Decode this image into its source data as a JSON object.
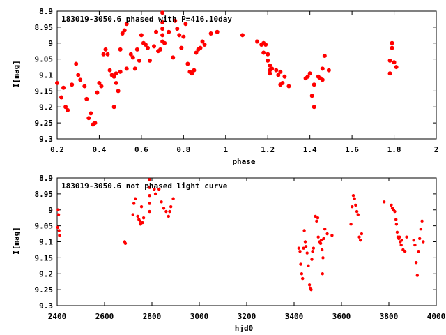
{
  "chart_data": [
    {
      "type": "scatter",
      "title": "183019-3050.6 phased with P=416.10day",
      "xlabel": "phase",
      "ylabel": "I[mag]",
      "xlim": [
        0.2,
        2.0
      ],
      "ylim": [
        8.9,
        9.3
      ],
      "y_inverted": true,
      "grid": false,
      "marker_color": "#ff0000",
      "x_ticks": [
        "0.2",
        "0.4",
        "0.6",
        "0.8",
        "1",
        "1.2",
        "1.4",
        "1.6",
        "1.8",
        "2"
      ],
      "y_ticks": [
        "8.9",
        "8.95",
        "9",
        "9.05",
        "9.1",
        "9.15",
        "9.2",
        "9.25",
        "9.3"
      ],
      "points": [
        [
          0.2,
          9.125
        ],
        [
          0.23,
          9.14
        ],
        [
          0.22,
          9.17
        ],
        [
          0.24,
          9.2
        ],
        [
          0.25,
          9.21
        ],
        [
          0.27,
          9.13
        ],
        [
          0.29,
          9.065
        ],
        [
          0.3,
          9.1
        ],
        [
          0.31,
          9.115
        ],
        [
          0.33,
          9.135
        ],
        [
          0.34,
          9.175
        ],
        [
          0.35,
          9.235
        ],
        [
          0.36,
          9.22
        ],
        [
          0.37,
          9.255
        ],
        [
          0.38,
          9.25
        ],
        [
          0.39,
          9.155
        ],
        [
          0.4,
          9.125
        ],
        [
          0.41,
          9.135
        ],
        [
          0.42,
          9.035
        ],
        [
          0.43,
          9.02
        ],
        [
          0.44,
          9.035
        ],
        [
          0.45,
          9.085
        ],
        [
          0.46,
          9.1
        ],
        [
          0.47,
          9.105
        ],
        [
          0.48,
          9.095
        ],
        [
          0.48,
          9.125
        ],
        [
          0.47,
          9.2
        ],
        [
          0.49,
          9.15
        ],
        [
          0.5,
          9.09
        ],
        [
          0.5,
          9.02
        ],
        [
          0.51,
          8.97
        ],
        [
          0.52,
          8.96
        ],
        [
          0.53,
          8.94
        ],
        [
          0.53,
          9.08
        ],
        [
          0.55,
          9.035
        ],
        [
          0.56,
          9.045
        ],
        [
          0.57,
          9.08
        ],
        [
          0.58,
          9.02
        ],
        [
          0.59,
          9.055
        ],
        [
          0.6,
          8.975
        ],
        [
          0.61,
          9.0
        ],
        [
          0.62,
          9.005
        ],
        [
          0.63,
          9.015
        ],
        [
          0.64,
          9.055
        ],
        [
          0.66,
          9.01
        ],
        [
          0.67,
          8.965
        ],
        [
          0.68,
          9.025
        ],
        [
          0.69,
          9.02
        ],
        [
          0.7,
          8.905
        ],
        [
          0.7,
          8.935
        ],
        [
          0.7,
          8.955
        ],
        [
          0.7,
          8.975
        ],
        [
          0.7,
          8.995
        ],
        [
          0.71,
          9.0
        ],
        [
          0.73,
          8.965
        ],
        [
          0.75,
          9.045
        ],
        [
          0.76,
          8.93
        ],
        [
          0.77,
          8.955
        ],
        [
          0.78,
          8.975
        ],
        [
          0.79,
          9.015
        ],
        [
          0.8,
          8.98
        ],
        [
          0.81,
          8.94
        ],
        [
          0.82,
          9.065
        ],
        [
          0.83,
          9.09
        ],
        [
          0.84,
          9.095
        ],
        [
          0.85,
          9.085
        ],
        [
          0.86,
          9.03
        ],
        [
          0.87,
          9.02
        ],
        [
          0.88,
          9.015
        ],
        [
          0.89,
          8.995
        ],
        [
          0.9,
          9.005
        ],
        [
          0.93,
          8.97
        ],
        [
          0.96,
          8.965
        ],
        [
          1.08,
          8.975
        ],
        [
          1.15,
          8.995
        ],
        [
          1.17,
          9.005
        ],
        [
          1.18,
          9.0
        ],
        [
          1.19,
          9.005
        ],
        [
          1.18,
          9.03
        ],
        [
          1.2,
          9.035
        ],
        [
          1.2,
          9.055
        ],
        [
          1.21,
          9.07
        ],
        [
          1.21,
          9.085
        ],
        [
          1.21,
          9.095
        ],
        [
          1.22,
          9.08
        ],
        [
          1.24,
          9.085
        ],
        [
          1.25,
          9.1
        ],
        [
          1.26,
          9.09
        ],
        [
          1.26,
          9.13
        ],
        [
          1.27,
          9.125
        ],
        [
          1.28,
          9.105
        ],
        [
          1.3,
          9.135
        ],
        [
          1.38,
          9.11
        ],
        [
          1.39,
          9.105
        ],
        [
          1.4,
          9.095
        ],
        [
          1.41,
          9.165
        ],
        [
          1.42,
          9.2
        ],
        [
          1.42,
          9.13
        ],
        [
          1.44,
          9.105
        ],
        [
          1.45,
          9.11
        ],
        [
          1.46,
          9.115
        ],
        [
          1.46,
          9.08
        ],
        [
          1.47,
          9.04
        ],
        [
          1.49,
          9.085
        ],
        [
          1.78,
          9.055
        ],
        [
          1.78,
          9.095
        ],
        [
          1.79,
          9.0
        ],
        [
          1.79,
          9.015
        ],
        [
          1.8,
          9.06
        ],
        [
          1.81,
          9.075
        ]
      ]
    },
    {
      "type": "scatter",
      "title": "183019-3050.6 not phased light curve",
      "xlabel": "hjd0",
      "ylabel": "I[mag]",
      "xlim": [
        2400,
        4000
      ],
      "ylim": [
        8.9,
        9.3
      ],
      "y_inverted": true,
      "grid": false,
      "marker_color": "#ff0000",
      "x_ticks": [
        "2400",
        "2600",
        "2800",
        "3000",
        "3200",
        "3400",
        "3600",
        "3800",
        "4000"
      ],
      "y_ticks": [
        "8.9",
        "8.95",
        "9",
        "9.05",
        "9.1",
        "9.15",
        "9.2",
        "9.25",
        "9.3"
      ],
      "points": [
        [
          2402,
          9.055
        ],
        [
          2404,
          9.0
        ],
        [
          2406,
          9.015
        ],
        [
          2408,
          9.065
        ],
        [
          2410,
          9.08
        ],
        [
          2685,
          9.1
        ],
        [
          2688,
          9.105
        ],
        [
          2720,
          9.015
        ],
        [
          2724,
          8.98
        ],
        [
          2730,
          8.965
        ],
        [
          2740,
          9.02
        ],
        [
          2745,
          9.03
        ],
        [
          2750,
          9.035
        ],
        [
          2752,
          9.045
        ],
        [
          2756,
          8.99
        ],
        [
          2760,
          9.04
        ],
        [
          2765,
          9.025
        ],
        [
          2790,
          8.905
        ],
        [
          2790,
          8.93
        ],
        [
          2790,
          8.955
        ],
        [
          2790,
          8.98
        ],
        [
          2790,
          9.005
        ],
        [
          2810,
          8.935
        ],
        [
          2815,
          8.95
        ],
        [
          2830,
          8.935
        ],
        [
          2840,
          8.975
        ],
        [
          2850,
          8.995
        ],
        [
          2860,
          9.005
        ],
        [
          2870,
          9.02
        ],
        [
          2875,
          9.005
        ],
        [
          2880,
          8.99
        ],
        [
          2890,
          8.965
        ],
        [
          3420,
          9.12
        ],
        [
          3425,
          9.13
        ],
        [
          3428,
          9.17
        ],
        [
          3432,
          9.2
        ],
        [
          3436,
          9.215
        ],
        [
          3440,
          9.12
        ],
        [
          3443,
          9.065
        ],
        [
          3447,
          9.1
        ],
        [
          3450,
          9.115
        ],
        [
          3455,
          9.135
        ],
        [
          3460,
          9.175
        ],
        [
          3465,
          9.235
        ],
        [
          3468,
          9.245
        ],
        [
          3472,
          9.25
        ],
        [
          3475,
          9.155
        ],
        [
          3478,
          9.13
        ],
        [
          3482,
          9.12
        ],
        [
          3490,
          9.02
        ],
        [
          3495,
          9.035
        ],
        [
          3500,
          9.025
        ],
        [
          3502,
          9.085
        ],
        [
          3508,
          9.1
        ],
        [
          3512,
          9.105
        ],
        [
          3515,
          9.095
        ],
        [
          3518,
          9.125
        ],
        [
          3520,
          9.2
        ],
        [
          3522,
          9.15
        ],
        [
          3525,
          9.09
        ],
        [
          3530,
          9.06
        ],
        [
          3540,
          9.075
        ],
        [
          3560,
          9.08
        ],
        [
          3640,
          9.045
        ],
        [
          3645,
          8.99
        ],
        [
          3650,
          8.955
        ],
        [
          3655,
          8.965
        ],
        [
          3660,
          8.985
        ],
        [
          3665,
          9.005
        ],
        [
          3670,
          9.015
        ],
        [
          3675,
          9.085
        ],
        [
          3680,
          9.095
        ],
        [
          3685,
          9.075
        ],
        [
          3780,
          8.975
        ],
        [
          3810,
          8.985
        ],
        [
          3815,
          8.995
        ],
        [
          3820,
          9.0
        ],
        [
          3825,
          9.005
        ],
        [
          3830,
          9.03
        ],
        [
          3832,
          9.045
        ],
        [
          3835,
          9.07
        ],
        [
          3838,
          9.085
        ],
        [
          3842,
          9.09
        ],
        [
          3845,
          9.085
        ],
        [
          3848,
          9.1
        ],
        [
          3852,
          9.11
        ],
        [
          3855,
          9.095
        ],
        [
          3860,
          9.125
        ],
        [
          3868,
          9.13
        ],
        [
          3875,
          9.085
        ],
        [
          3905,
          9.095
        ],
        [
          3910,
          9.11
        ],
        [
          3915,
          9.165
        ],
        [
          3920,
          9.205
        ],
        [
          3925,
          9.13
        ],
        [
          3930,
          9.09
        ],
        [
          3935,
          9.06
        ],
        [
          3940,
          9.035
        ],
        [
          3945,
          9.1
        ]
      ]
    }
  ]
}
